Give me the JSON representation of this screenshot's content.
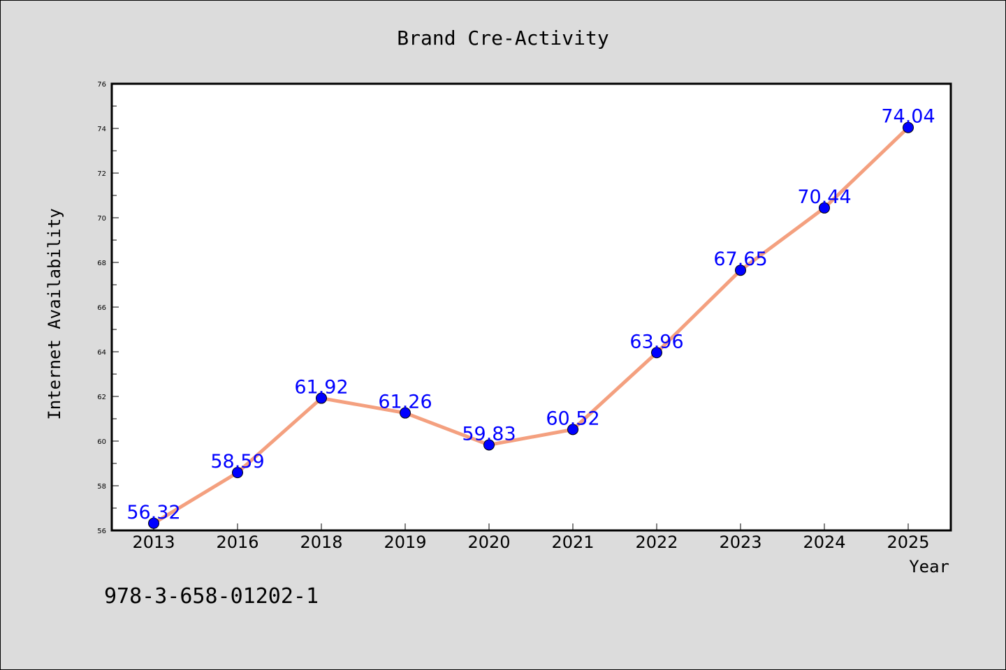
{
  "chart_data": {
    "type": "line",
    "title": "Brand Cre-Activity",
    "xlabel": "Year",
    "ylabel": "Internet Availability",
    "categories": [
      "2013",
      "2016",
      "2018",
      "2019",
      "2020",
      "2021",
      "2022",
      "2023",
      "2024",
      "2025"
    ],
    "series": [
      {
        "values": [
          56.32,
          58.59,
          61.92,
          61.26,
          59.83,
          60.52,
          63.96,
          67.65,
          70.44,
          74.04
        ],
        "labels": [
          "56.32",
          "58.59",
          "61.92",
          "61.26",
          "59.83",
          "60.52",
          "63.96",
          "67.65",
          "70.44",
          "74.04"
        ],
        "line_color": "#f4a07f",
        "marker_color": "#0000ff",
        "label_color": "#0000ff"
      }
    ],
    "ylim": [
      56,
      76
    ],
    "yticks": [
      56,
      58,
      60,
      62,
      64,
      66,
      68,
      70,
      72,
      74,
      76
    ],
    "grid": false,
    "legend": "none"
  },
  "footer_code": "978-3-658-01202-1",
  "colors": {
    "background": "#dcdcdc",
    "plot_background": "#ffffff",
    "axis": "#000000"
  }
}
